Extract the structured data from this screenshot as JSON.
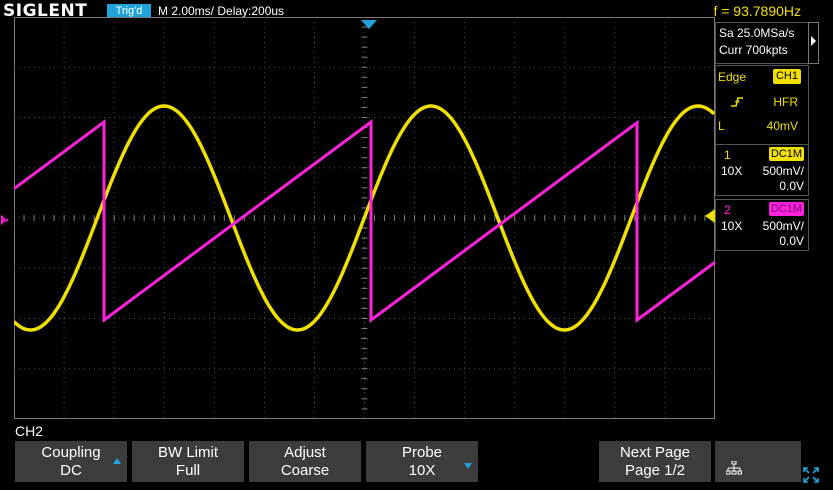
{
  "header": {
    "logo": "SIGLENT",
    "trigger_status": "Trig'd",
    "timebase": "M 2.00ms/ Delay:200us",
    "frequency": "f = 93.7890Hz"
  },
  "acquisition": {
    "sample_rate": "Sa 25.0MSa/s",
    "memory_depth": "Curr 700kpts"
  },
  "trigger": {
    "type": "Edge",
    "source": "CH1",
    "coupling": "HFR",
    "level_label": "L",
    "level_value": "40mV"
  },
  "channels": [
    {
      "number": "1",
      "coupling": "DC1M",
      "probe": "10X",
      "scale": "500mV/",
      "offset": "0.0V",
      "color": "#f0e000"
    },
    {
      "number": "2",
      "coupling": "DC1M",
      "probe": "10X",
      "scale": "500mV/",
      "offset": "0.0V",
      "color": "#ff22dd"
    }
  ],
  "menu": {
    "title": "CH2",
    "softkeys": [
      {
        "name": "Coupling",
        "value": "DC",
        "arrow": "up"
      },
      {
        "name": "BW Limit",
        "value": "Full",
        "arrow": ""
      },
      {
        "name": "Adjust",
        "value": "Coarse",
        "arrow": ""
      },
      {
        "name": "Probe",
        "value": "10X",
        "arrow": "down"
      },
      {
        "name": "Next Page",
        "value": "Page 1/2",
        "arrow": ""
      }
    ]
  },
  "icons": {
    "network": "network-icon",
    "fullscreen": "fullscreen-icon",
    "trigger_edge": "rising-edge-icon"
  }
}
